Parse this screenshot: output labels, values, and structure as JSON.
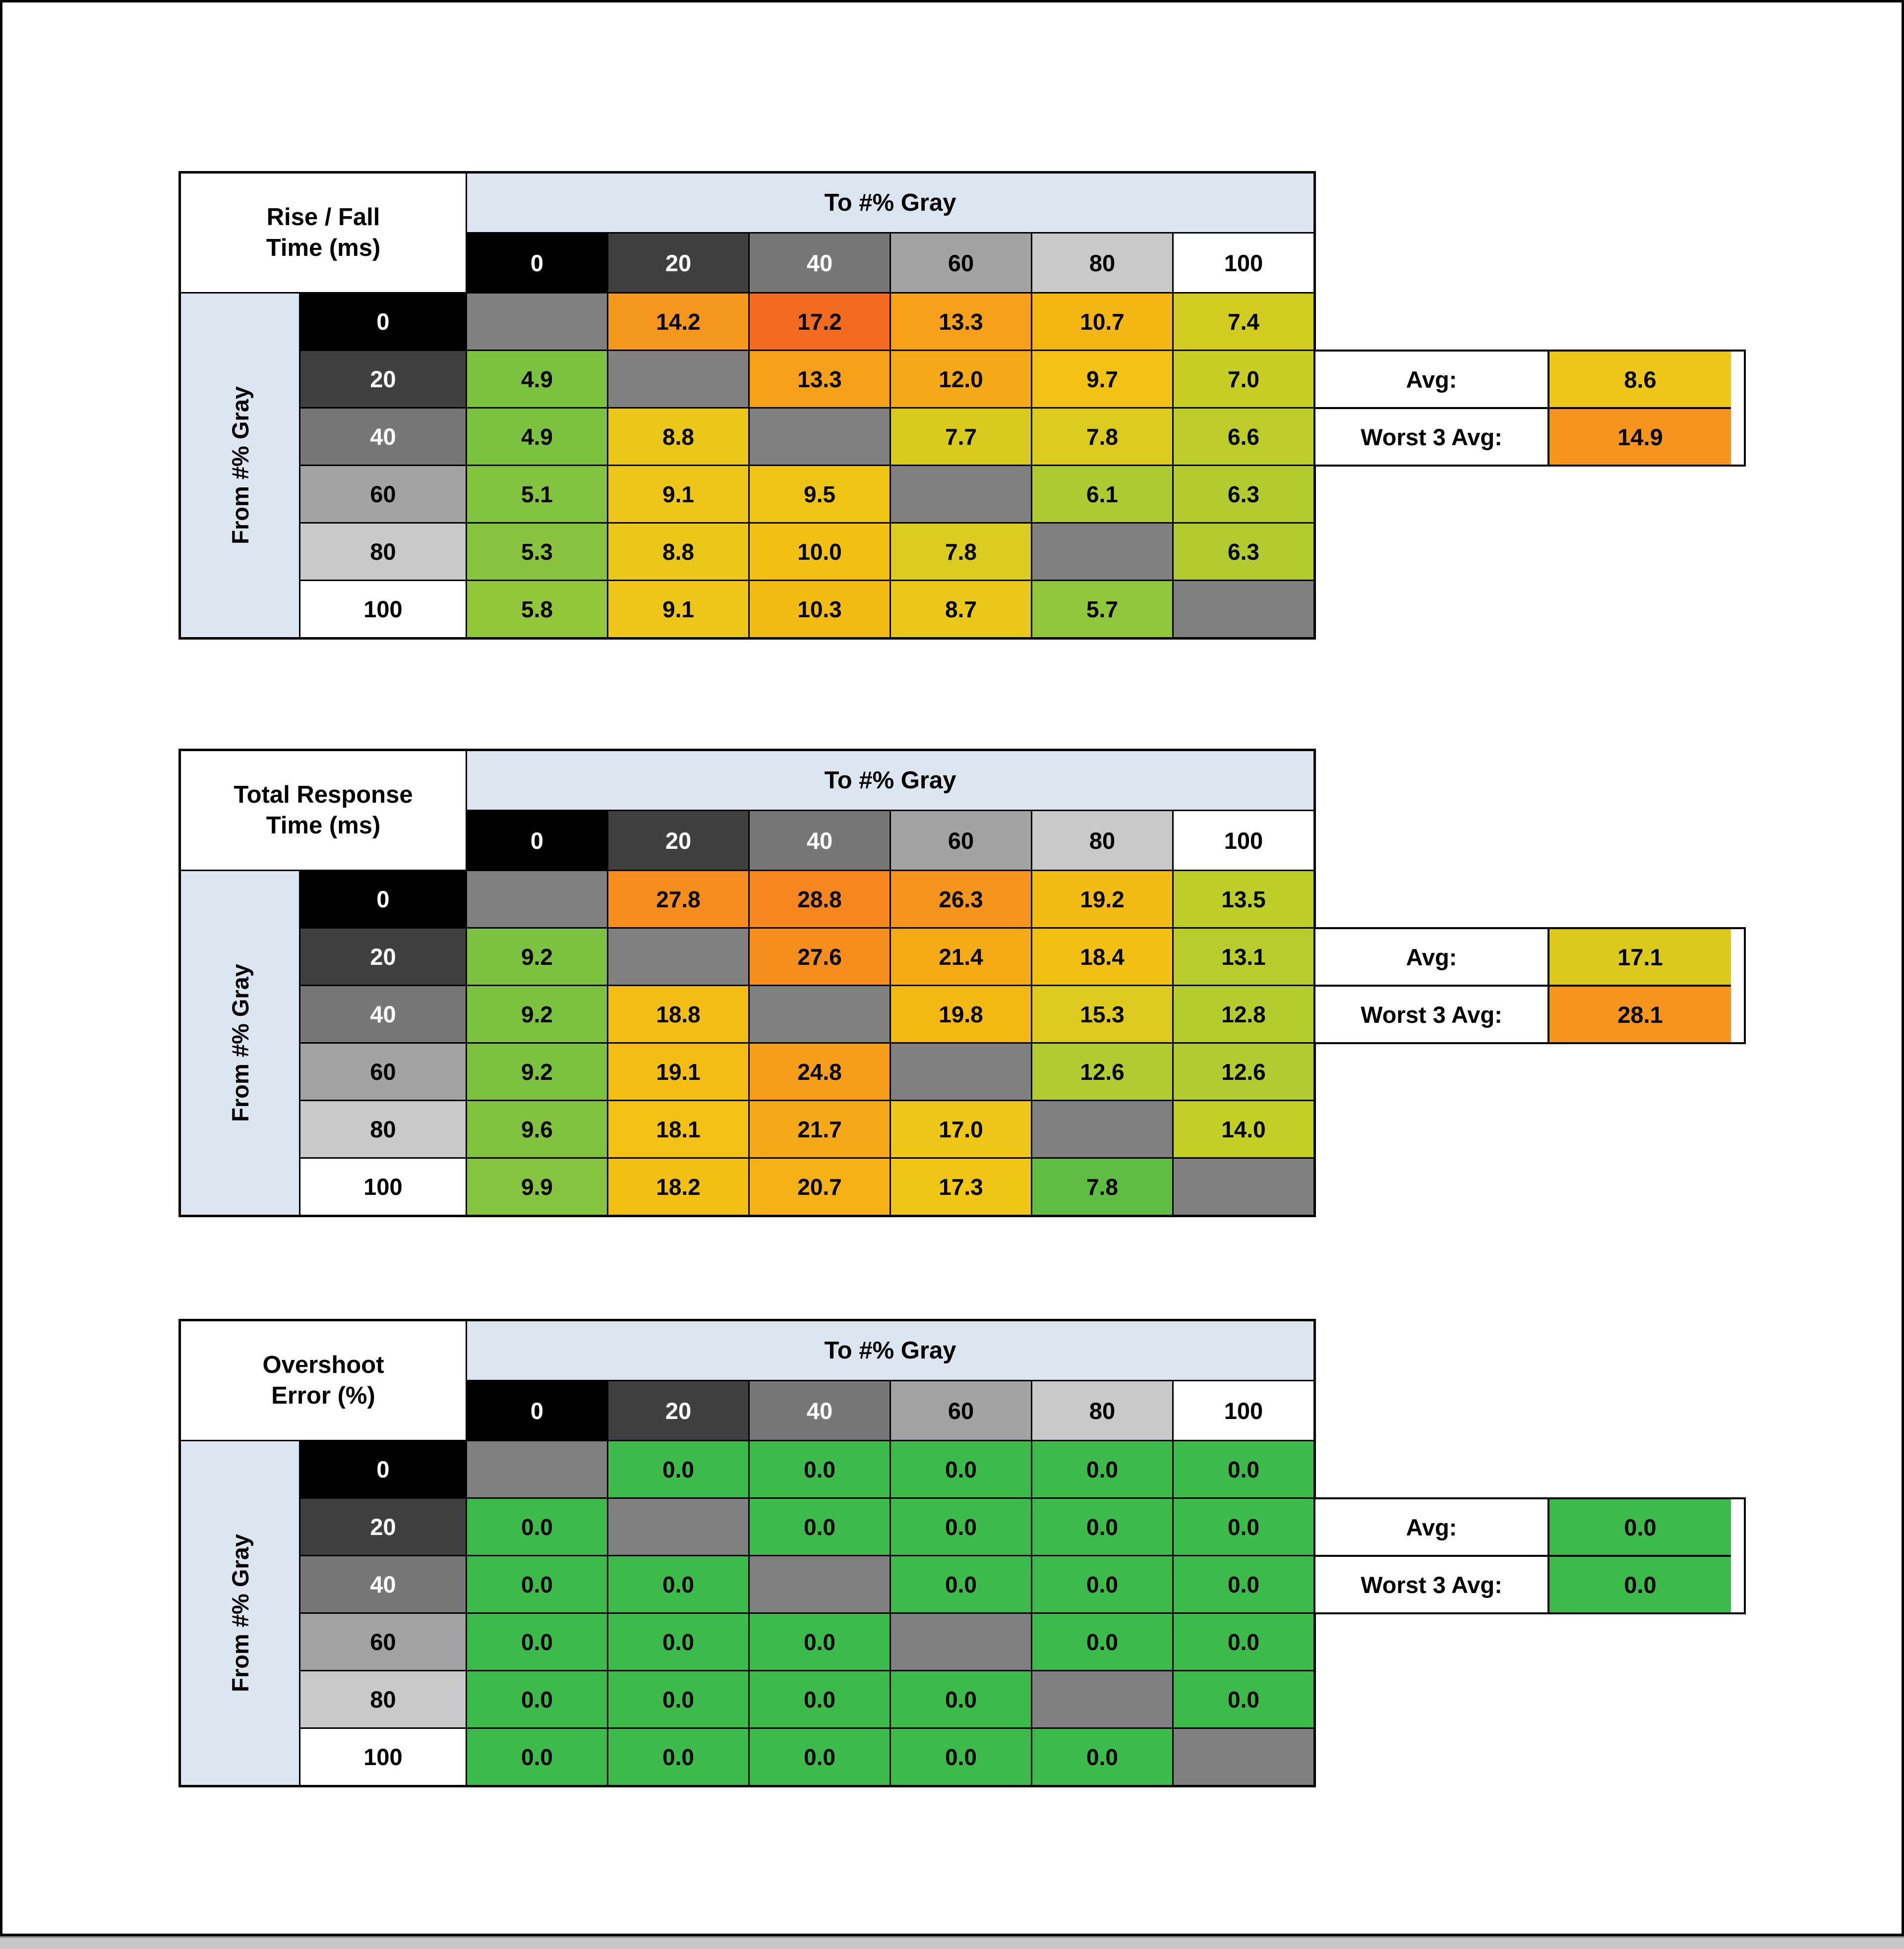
{
  "palette": {
    "header_blue": "#dce6f1",
    "diagonal": "#808080",
    "grid_line": "#000000",
    "page_bg": "#ffffff",
    "bottom_bar": "#c6c6c6",
    "gray_scale": [
      {
        "bg": "#000000",
        "fg": "#ffffff"
      },
      {
        "bg": "#404040",
        "fg": "#ffffff"
      },
      {
        "bg": "#777777",
        "fg": "#ffffff"
      },
      {
        "bg": "#a3a3a3",
        "fg": "#000000"
      },
      {
        "bg": "#c9c9c9",
        "fg": "#000000"
      },
      {
        "bg": "#ffffff",
        "fg": "#000000"
      }
    ]
  },
  "chart_data": [
    {
      "type": "heatmap",
      "title": [
        "Rise / Fall",
        "Time (ms)"
      ],
      "col_axis_label": "To #% Gray",
      "row_axis_label": "From #% Gray",
      "columns": [
        "0",
        "20",
        "40",
        "60",
        "80",
        "100"
      ],
      "rows": [
        "0",
        "20",
        "40",
        "60",
        "80",
        "100"
      ],
      "values": [
        [
          null,
          14.2,
          17.2,
          13.3,
          10.7,
          7.4
        ],
        [
          4.9,
          null,
          13.3,
          12.0,
          9.7,
          7.0
        ],
        [
          4.9,
          8.8,
          null,
          7.7,
          7.8,
          6.6
        ],
        [
          5.1,
          9.1,
          9.5,
          null,
          6.1,
          6.3
        ],
        [
          5.3,
          8.8,
          10.0,
          7.8,
          null,
          6.3
        ],
        [
          5.8,
          9.1,
          10.3,
          8.7,
          5.7,
          null
        ]
      ],
      "cell_colors": [
        [
          null,
          "#f6971d",
          "#f26b1f",
          "#f6a01a",
          "#f4b613",
          "#d2cc20"
        ],
        [
          "#7cc241",
          null,
          "#f6a01a",
          "#f5a916",
          "#f1c214",
          "#c8ce24"
        ],
        [
          "#7cc241",
          "#ebc719",
          null,
          "#d8cb1e",
          "#dacb1e",
          "#bccd2a"
        ],
        [
          "#82c33f",
          "#edc618",
          "#f0c415",
          null,
          "#aeca31",
          "#b3cb2f"
        ],
        [
          "#88c43d",
          "#ebc719",
          "#f2bf13",
          "#dacb1e",
          null,
          "#b3cb2f"
        ],
        [
          "#93c73a",
          "#edc618",
          "#f3bc13",
          "#e9c81a",
          "#90c63b",
          null
        ]
      ],
      "avg": {
        "label": "Avg:",
        "value": 8.6,
        "color": "#edc618"
      },
      "worst3": {
        "label": "Worst 3 Avg:",
        "value": 14.9,
        "color": "#f6941d"
      }
    },
    {
      "type": "heatmap",
      "title": [
        "Total Response",
        "Time (ms)"
      ],
      "col_axis_label": "To #% Gray",
      "row_axis_label": "From #% Gray",
      "columns": [
        "0",
        "20",
        "40",
        "60",
        "80",
        "100"
      ],
      "rows": [
        "0",
        "20",
        "40",
        "60",
        "80",
        "100"
      ],
      "values": [
        [
          null,
          27.8,
          28.8,
          26.3,
          19.2,
          13.5
        ],
        [
          9.2,
          null,
          27.6,
          21.4,
          18.4,
          13.1
        ],
        [
          9.2,
          18.8,
          null,
          19.8,
          15.3,
          12.8
        ],
        [
          9.2,
          19.1,
          24.8,
          null,
          12.6,
          12.6
        ],
        [
          9.6,
          18.1,
          21.7,
          17.0,
          null,
          14.0
        ],
        [
          9.9,
          18.2,
          20.7,
          17.3,
          7.8,
          null
        ]
      ],
      "cell_colors": [
        [
          null,
          "#f68d1e",
          "#f6871f",
          "#f6951d",
          "#f3bc13",
          "#bdce29"
        ],
        [
          "#7cc241",
          null,
          "#f68e1e",
          "#f5ab16",
          "#f2bf13",
          "#b8cd2c"
        ],
        [
          "#7cc241",
          "#f3be13",
          null,
          "#f4b813",
          "#ddca1d",
          "#b4cc2e"
        ],
        [
          "#7cc241",
          "#f3bd13",
          "#f69e1a",
          null,
          "#b1cb30",
          "#b1cb30"
        ],
        [
          "#81c33f",
          "#f2c113",
          "#f5a916",
          "#eec617",
          null,
          "#c4cf25"
        ],
        [
          "#84c43e",
          "#f2c013",
          "#f5b115",
          "#efc516",
          "#5fbd44",
          null
        ]
      ],
      "avg": {
        "label": "Avg:",
        "value": 17.1,
        "color": "#ddc91c"
      },
      "worst3": {
        "label": "Worst 3 Avg:",
        "value": 28.1,
        "color": "#f6941d"
      }
    },
    {
      "type": "heatmap",
      "title": [
        "Overshoot",
        "Error (%)"
      ],
      "col_axis_label": "To #% Gray",
      "row_axis_label": "From #% Gray",
      "columns": [
        "0",
        "20",
        "40",
        "60",
        "80",
        "100"
      ],
      "rows": [
        "0",
        "20",
        "40",
        "60",
        "80",
        "100"
      ],
      "values": [
        [
          null,
          0.0,
          0.0,
          0.0,
          0.0,
          0.0
        ],
        [
          0.0,
          null,
          0.0,
          0.0,
          0.0,
          0.0
        ],
        [
          0.0,
          0.0,
          null,
          0.0,
          0.0,
          0.0
        ],
        [
          0.0,
          0.0,
          0.0,
          null,
          0.0,
          0.0
        ],
        [
          0.0,
          0.0,
          0.0,
          0.0,
          null,
          0.0
        ],
        [
          0.0,
          0.0,
          0.0,
          0.0,
          0.0,
          null
        ]
      ],
      "cell_colors": [
        [
          null,
          "#3cbb4b",
          "#3cbb4b",
          "#3cbb4b",
          "#3cbb4b",
          "#3cbb4b"
        ],
        [
          "#3cbb4b",
          null,
          "#3cbb4b",
          "#3cbb4b",
          "#3cbb4b",
          "#3cbb4b"
        ],
        [
          "#3cbb4b",
          "#3cbb4b",
          null,
          "#3cbb4b",
          "#3cbb4b",
          "#3cbb4b"
        ],
        [
          "#3cbb4b",
          "#3cbb4b",
          "#3cbb4b",
          null,
          "#3cbb4b",
          "#3cbb4b"
        ],
        [
          "#3cbb4b",
          "#3cbb4b",
          "#3cbb4b",
          "#3cbb4b",
          null,
          "#3cbb4b"
        ],
        [
          "#3cbb4b",
          "#3cbb4b",
          "#3cbb4b",
          "#3cbb4b",
          "#3cbb4b",
          null
        ]
      ],
      "avg": {
        "label": "Avg:",
        "value": 0.0,
        "color": "#3cbb4b"
      },
      "worst3": {
        "label": "Worst 3 Avg:",
        "value": 0.0,
        "color": "#3cbb4b"
      }
    }
  ]
}
